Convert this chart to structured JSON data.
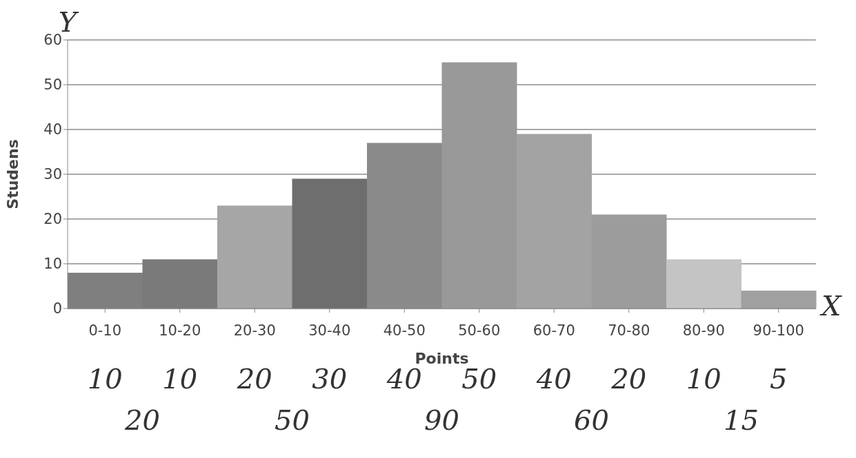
{
  "chart_data": {
    "type": "bar",
    "xlabel": "Points",
    "ylabel": "Studens",
    "categories": [
      "0-10",
      "10-20",
      "20-30",
      "30-40",
      "40-50",
      "50-60",
      "60-70",
      "70-80",
      "80-90",
      "90-100"
    ],
    "values": [
      8,
      11,
      23,
      29,
      37,
      55,
      39,
      21,
      11,
      4
    ],
    "colors": [
      "#7f7f7f",
      "#7a7a7a",
      "#a6a6a6",
      "#6e6e6e",
      "#8a8a8a",
      "#999999",
      "#a3a3a3",
      "#9c9c9c",
      "#c4c4c4",
      "#a0a0a0"
    ],
    "ylim": [
      0,
      60
    ],
    "yticks": [
      0,
      10,
      20,
      30,
      40,
      50,
      60
    ],
    "grid": "y",
    "legend": false,
    "annotations": [
      "10",
      "10",
      "20",
      "30",
      "40",
      "50",
      "40",
      "20",
      "10",
      "5",
      "20",
      "50",
      "90",
      "60",
      "15",
      "Y",
      "X"
    ]
  }
}
